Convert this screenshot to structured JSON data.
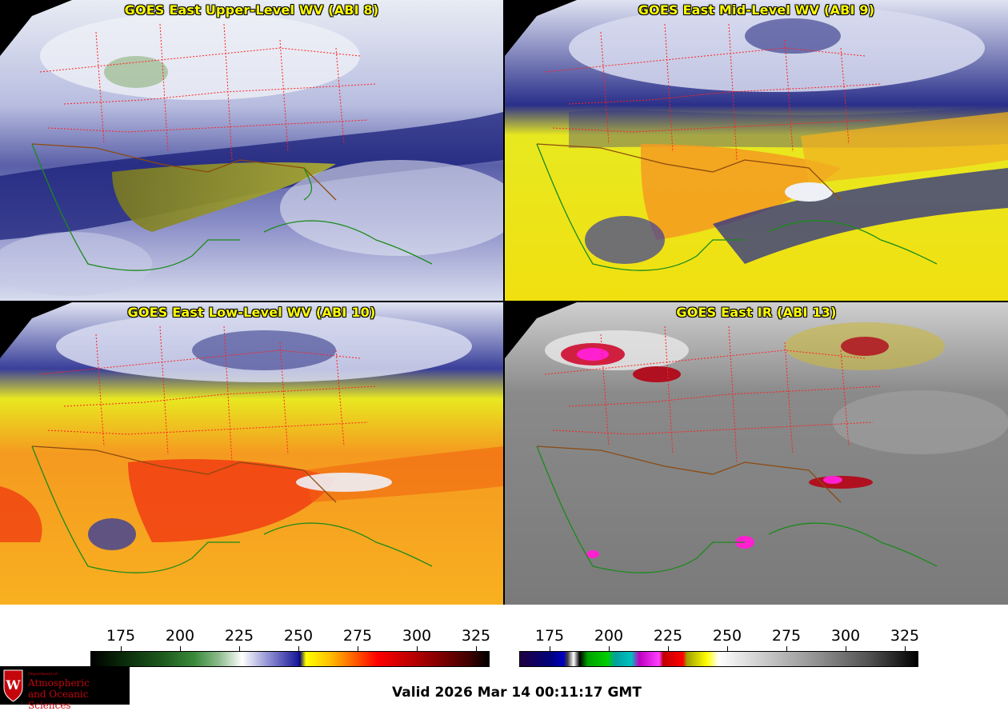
{
  "panels": [
    {
      "title": "GOES East Upper-Level WV (ABI 8)",
      "palette": "wv_upper"
    },
    {
      "title": "GOES East Mid-Level WV (ABI 9)",
      "palette": "wv_mid"
    },
    {
      "title": "GOES East Low-Level WV (ABI 10)",
      "palette": "wv_low"
    },
    {
      "title": "GOES East IR (ABI 13)",
      "palette": "ir"
    }
  ],
  "colorbars": [
    {
      "name": "wv-colorbar",
      "ticks": [
        "175",
        "200",
        "225",
        "250",
        "275",
        "300",
        "325"
      ]
    },
    {
      "name": "ir-colorbar",
      "ticks": [
        "175",
        "200",
        "225",
        "250",
        "275",
        "300",
        "325"
      ]
    }
  ],
  "valid_time": "Valid 2026 Mar 14 00:11:17 GMT",
  "logo": {
    "department": "Department of",
    "line1": "Atmospheric",
    "line2": "and Oceanic Sciences",
    "crest_letter": "W"
  },
  "colors": {
    "title": "#ffff00",
    "state_lines": "#ff2020",
    "coastline": "#1a8a1a",
    "country_border": "#8b4a10",
    "logo_text": "#c5050c"
  }
}
